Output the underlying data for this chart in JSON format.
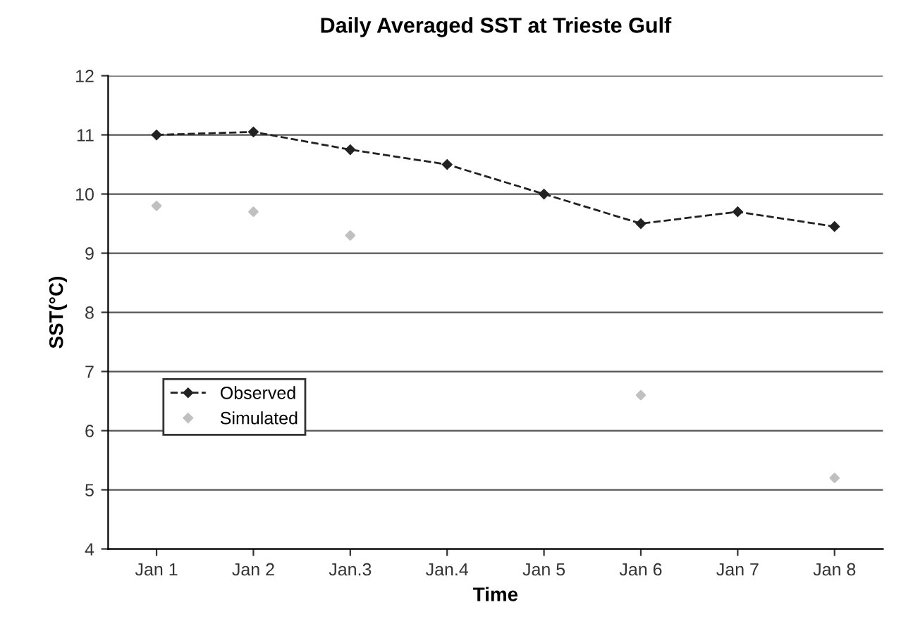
{
  "chart_data": {
    "type": "line",
    "title": "Daily Averaged SST at Trieste Gulf",
    "xlabel": "Time",
    "ylabel": "SST(°C)",
    "categories": [
      "Jan 1",
      "Jan 2",
      "Jan.3",
      "Jan.4",
      "Jan 5",
      "Jan 6",
      "Jan 7",
      "Jan 8"
    ],
    "series": [
      {
        "name": "Observed",
        "color": "#222222",
        "values": [
          11.0,
          11.05,
          10.75,
          10.5,
          10.0,
          9.5,
          9.7,
          9.45
        ],
        "line_style": "dashed",
        "marker": "diamond"
      },
      {
        "name": "Simulated",
        "color": "#c0c0c0",
        "type": "scatter",
        "values": [
          9.8,
          9.7,
          9.3,
          null,
          null,
          6.6,
          null,
          5.2
        ],
        "marker": "diamond"
      }
    ],
    "ylim": [
      4,
      12
    ],
    "yticks": [
      4,
      5,
      6,
      7,
      8,
      9,
      10,
      11,
      12
    ],
    "grid": "y",
    "legend": "left"
  }
}
